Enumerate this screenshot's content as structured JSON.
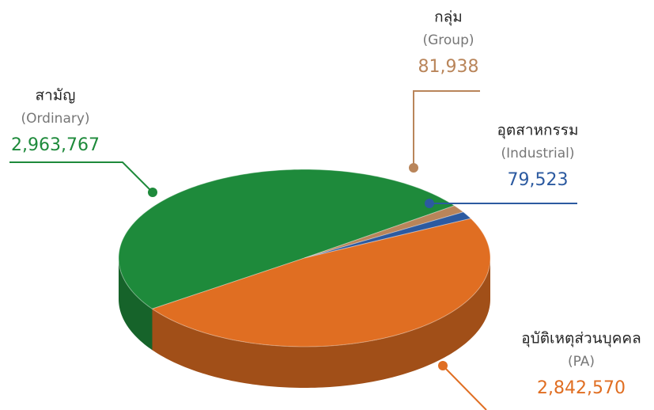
{
  "chart_data": {
    "type": "pie",
    "categories": [
      "สามัญ",
      "กลุ่ม",
      "อุตสาหกรรม",
      "อุบัติเหตุส่วนบุคคล"
    ],
    "categories_en": [
      "(Ordinary)",
      "(Group)",
      "(Industrial)",
      "(PA)"
    ],
    "values": [
      2963767,
      81938,
      79523,
      2842570
    ],
    "value_labels": [
      "2,963,767",
      "81,938",
      "79,523",
      "2,842,570"
    ],
    "colors": [
      "#1e8a3b",
      "#b9855a",
      "#2c5aa0",
      "#e06e22"
    ]
  }
}
